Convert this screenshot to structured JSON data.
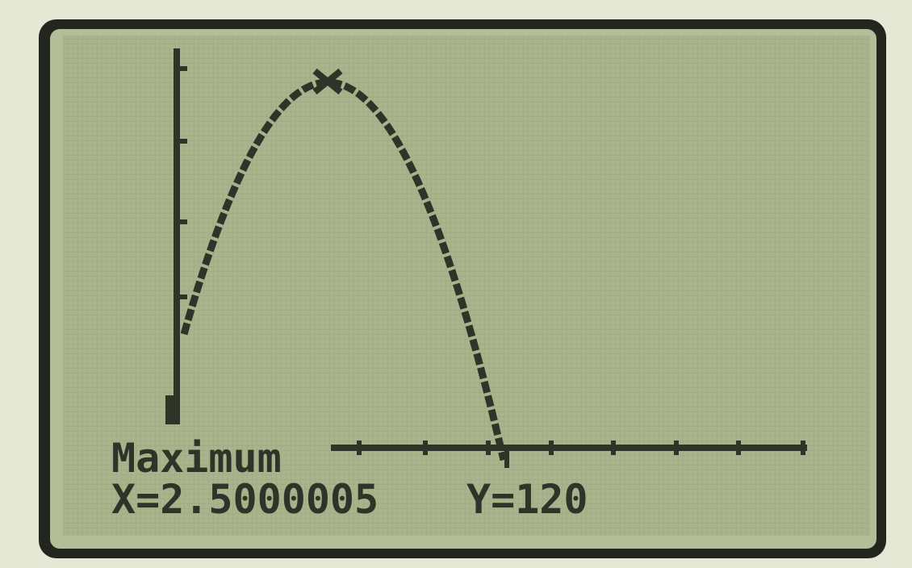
{
  "screen": {
    "label": "Maximum",
    "x_readout": "X=2.5000005",
    "y_readout": "Y=120"
  }
}
